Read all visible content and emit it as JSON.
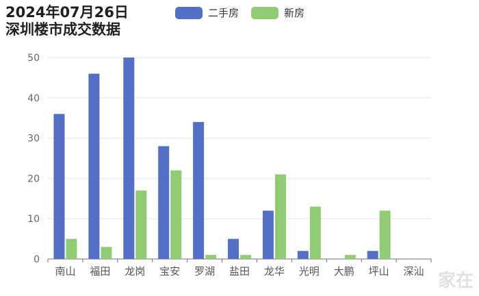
{
  "title": {
    "line1": "2024年07月26日",
    "line2": "深圳楼市成交数据"
  },
  "colors": {
    "second_hand": "#5470c6",
    "new_house": "#91cc75",
    "grid": "#e6e6e6",
    "axis": "#6e7079",
    "label": "#666666"
  },
  "chart_data": {
    "type": "bar",
    "categories": [
      "南山",
      "福田",
      "龙岗",
      "宝安",
      "罗湖",
      "盐田",
      "龙华",
      "光明",
      "大鹏",
      "坪山",
      "深汕"
    ],
    "series": [
      {
        "name": "二手房",
        "values": [
          36,
          46,
          50,
          28,
          34,
          5,
          12,
          2,
          0,
          2,
          0
        ]
      },
      {
        "name": "新房",
        "values": [
          5,
          3,
          17,
          22,
          1,
          1,
          21,
          13,
          1,
          12,
          0
        ]
      }
    ],
    "ylim": [
      0,
      50
    ],
    "yticks": [
      0,
      10,
      20,
      30,
      40,
      50
    ],
    "grid": true,
    "legend": "top-center"
  },
  "watermark": "家在"
}
